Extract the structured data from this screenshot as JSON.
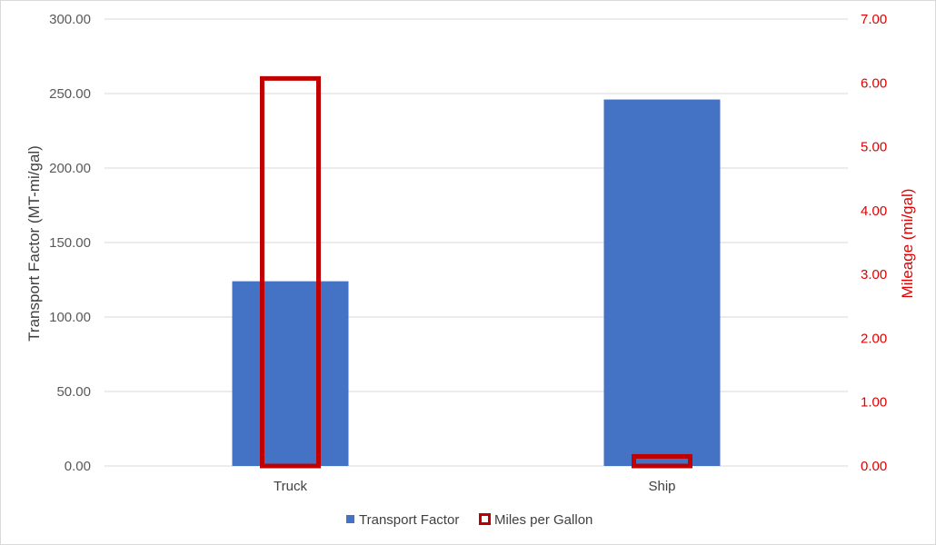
{
  "chart_data": {
    "type": "bar",
    "categories": [
      "Truck",
      "Ship"
    ],
    "series": [
      {
        "name": "Transport Factor",
        "axis": "left",
        "style": "filled",
        "color": "#4472c4",
        "values": [
          124,
          246
        ]
      },
      {
        "name": "Miles per Gallon",
        "axis": "right",
        "style": "outline",
        "color": "#c00000",
        "values": [
          6.07,
          0.15
        ]
      }
    ],
    "y_left": {
      "label": "Transport Factor (MT-mi/gal)",
      "range": [
        0,
        300
      ],
      "ticks": [
        "0.00",
        "50.00",
        "100.00",
        "150.00",
        "200.00",
        "250.00",
        "300.00"
      ]
    },
    "y_right": {
      "label": "Mileage (mi/gal)",
      "range": [
        0,
        7
      ],
      "ticks": [
        "0.00",
        "1.00",
        "2.00",
        "3.00",
        "4.00",
        "5.00",
        "6.00",
        "7.00"
      ],
      "color": "#e00000"
    },
    "grid": true,
    "legend_position": "bottom"
  }
}
